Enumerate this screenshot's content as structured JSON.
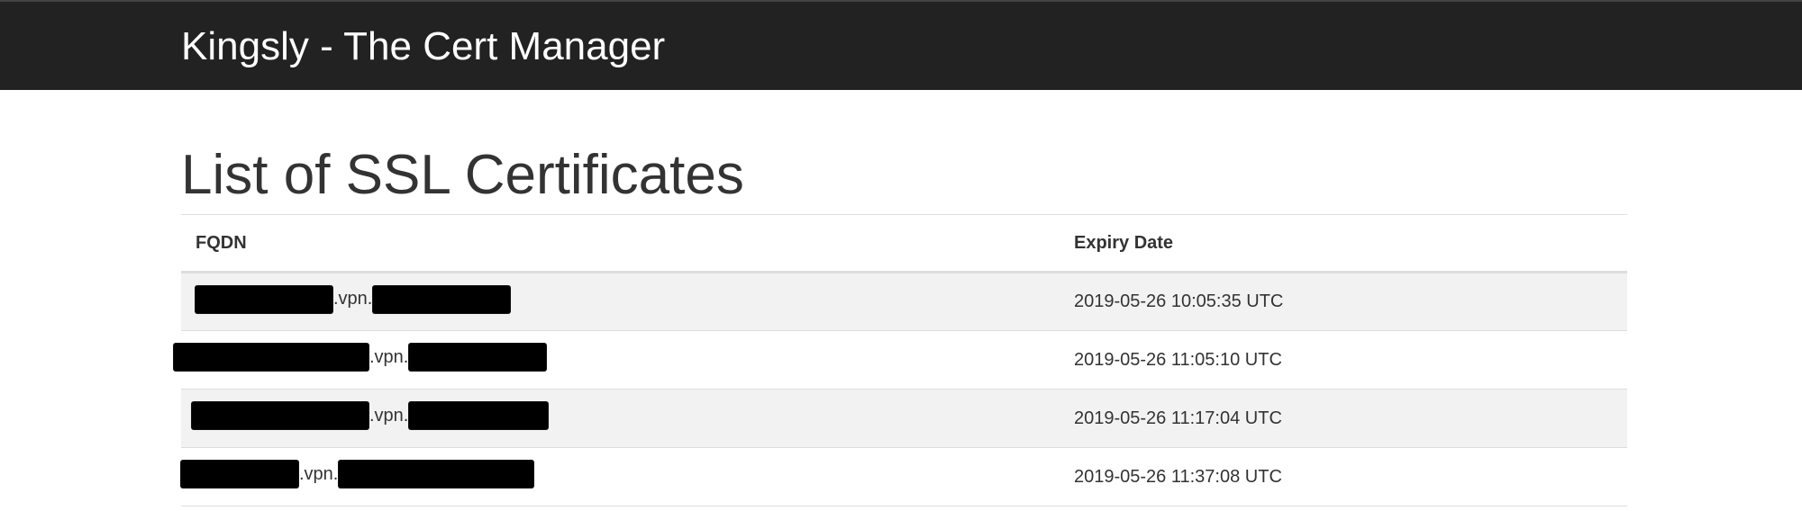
{
  "navbar": {
    "brand": "Kingsly - The Cert Manager"
  },
  "page": {
    "title": "List of SSL Certificates"
  },
  "table": {
    "columns": [
      "FQDN",
      "Expiry Date"
    ],
    "rows": [
      {
        "fqdn_mid": ".vpn.",
        "expiry": "2019-05-26 10:05:35 UTC"
      },
      {
        "fqdn_mid": ".vpn.",
        "expiry": "2019-05-26 11:05:10 UTC"
      },
      {
        "fqdn_mid": ".vpn.",
        "expiry": "2019-05-26 11:17:04 UTC"
      },
      {
        "fqdn_mid": ".vpn.",
        "expiry": "2019-05-26 11:37:08 UTC"
      }
    ]
  },
  "colors": {
    "navbar_bg": "#222222",
    "striped_row_bg": "#f2f2f2",
    "text": "#333333",
    "redaction": "#000000"
  }
}
